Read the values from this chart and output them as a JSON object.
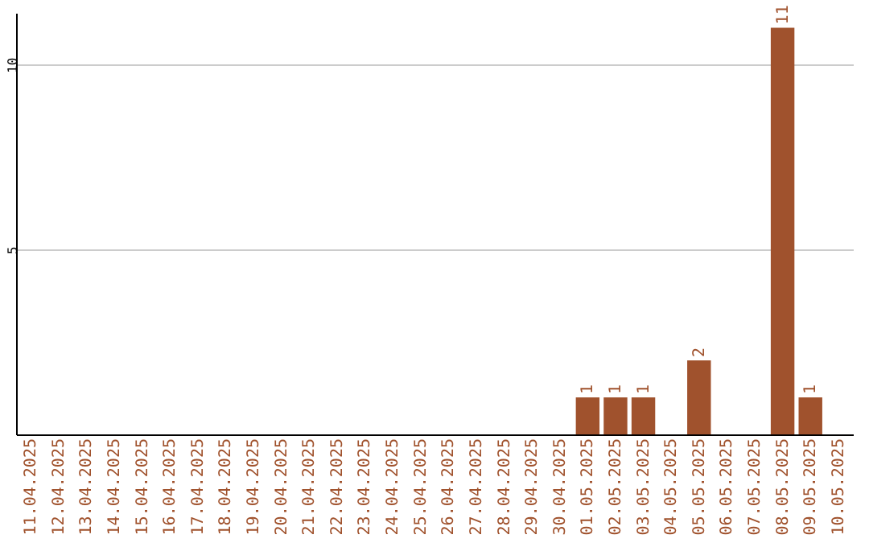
{
  "chart_data": {
    "type": "bar",
    "categories": [
      "11.04.2025",
      "12.04.2025",
      "13.04.2025",
      "14.04.2025",
      "15.04.2025",
      "16.04.2025",
      "17.04.2025",
      "18.04.2025",
      "19.04.2025",
      "20.04.2025",
      "21.04.2025",
      "22.04.2025",
      "23.04.2025",
      "24.04.2025",
      "25.04.2025",
      "26.04.2025",
      "27.04.2025",
      "28.04.2025",
      "29.04.2025",
      "30.04.2025",
      "01.05.2025",
      "02.05.2025",
      "03.05.2025",
      "04.05.2025",
      "05.05.2025",
      "06.05.2025",
      "07.05.2025",
      "08.05.2025",
      "09.05.2025",
      "10.05.2025"
    ],
    "values": [
      0,
      0,
      0,
      0,
      0,
      0,
      0,
      0,
      0,
      0,
      0,
      0,
      0,
      0,
      0,
      0,
      0,
      0,
      0,
      0,
      1,
      1,
      1,
      0,
      2,
      0,
      0,
      11,
      1,
      0
    ],
    "value_labels": [
      null,
      null,
      null,
      null,
      null,
      null,
      null,
      null,
      null,
      null,
      null,
      null,
      null,
      null,
      null,
      null,
      null,
      null,
      null,
      null,
      "1",
      "1",
      "1",
      null,
      "2",
      null,
      null,
      "11",
      "1",
      null
    ],
    "color": "#a0522d",
    "ylim": [
      0,
      11.4
    ],
    "yticks": [
      5,
      10
    ],
    "grid": "y"
  }
}
